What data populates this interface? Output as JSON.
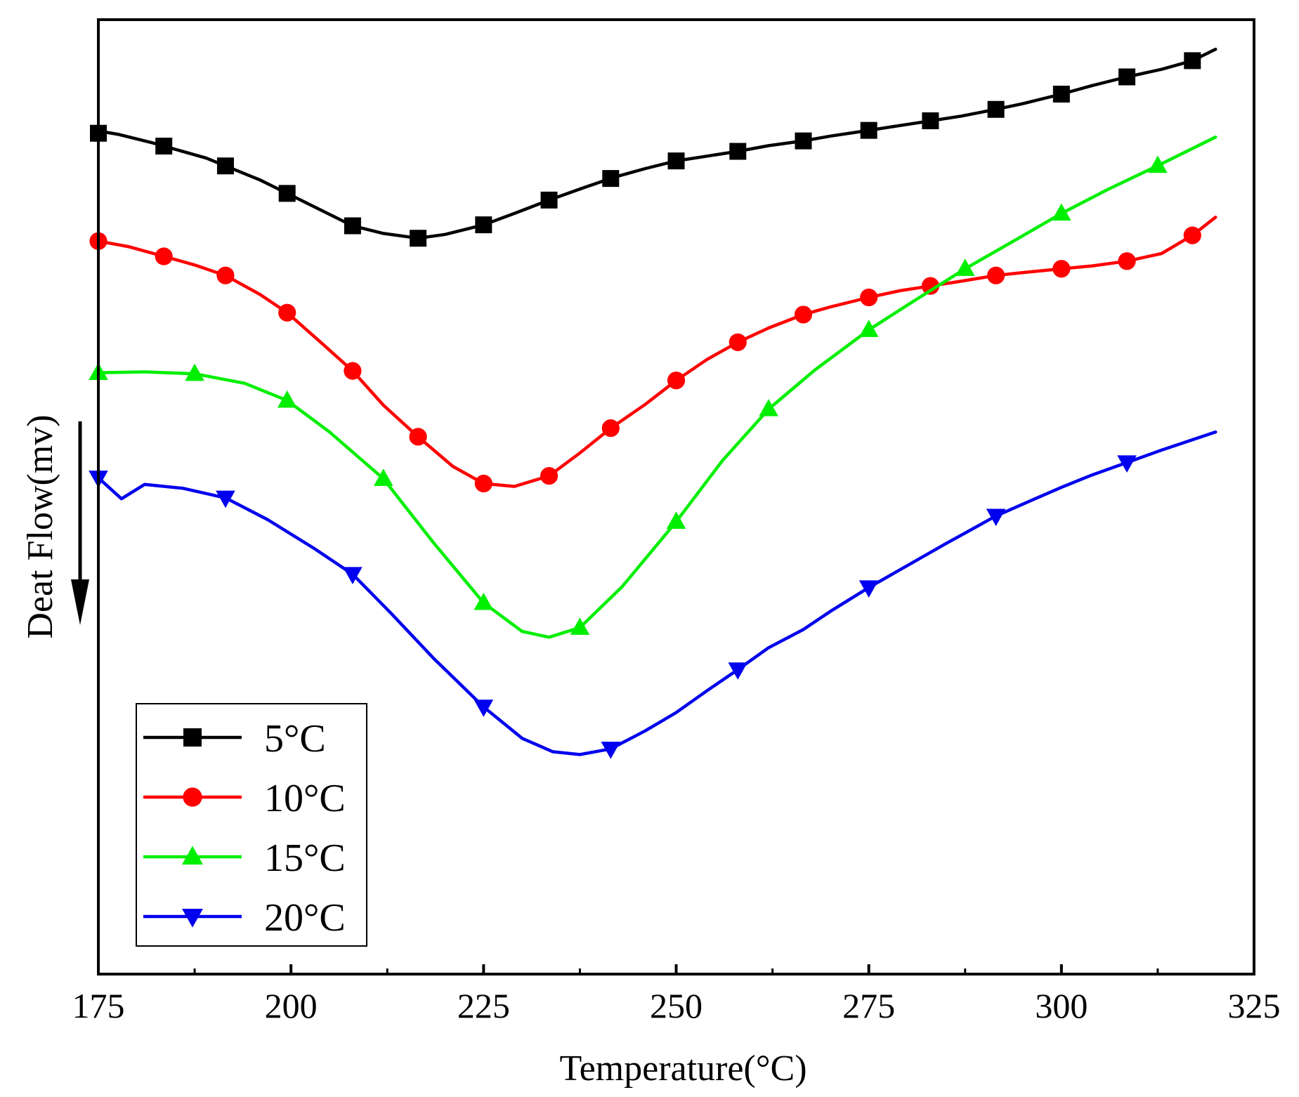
{
  "chart_data": {
    "type": "line",
    "title": "",
    "xlabel": "Temperature(°C)",
    "ylabel": "Deat Flow(mv)",
    "xlim": [
      175,
      325
    ],
    "ylim": [
      0,
      100
    ],
    "xticks": [
      "175",
      "200",
      "225",
      "250",
      "275",
      "300",
      "325"
    ],
    "xtick_values": [
      175,
      200,
      225,
      250,
      275,
      300,
      325
    ],
    "grid": false,
    "legend_position": "bottom-left",
    "ylabel_arrow": "down",
    "series": [
      {
        "name": "5°C",
        "color": "#000000",
        "marker": "square",
        "x": [
          175,
          176,
          177.5,
          182,
          189,
          196,
          202,
          208,
          212,
          216.5,
          220,
          225,
          229,
          233.5,
          238,
          242,
          246,
          250,
          254,
          258,
          262,
          266.5,
          270,
          275,
          279,
          283,
          287,
          291.5,
          295,
          300,
          304,
          308.5,
          313,
          317,
          320
        ],
        "y": [
          88.1,
          88.2,
          88.0,
          87.1,
          85.5,
          83.2,
          80.8,
          78.4,
          77.6,
          77.1,
          77.5,
          78.5,
          79.7,
          81.1,
          82.4,
          83.5,
          84.4,
          85.2,
          85.7,
          86.2,
          86.8,
          87.3,
          87.8,
          88.4,
          88.9,
          89.4,
          89.9,
          90.6,
          91.2,
          92.2,
          93.1,
          94.0,
          94.8,
          95.7,
          96.9
        ],
        "marker_x": [
          175,
          183.5,
          191.5,
          199.5,
          208,
          216.5,
          225,
          233.5,
          241.5,
          250,
          258,
          266.5,
          275,
          283,
          291.5,
          300,
          308.5,
          317
        ]
      },
      {
        "name": "10°C",
        "color": "#ff0000",
        "marker": "circle",
        "x": [
          175,
          179,
          183.5,
          187.5,
          191.5,
          196,
          199.5,
          204,
          208,
          212,
          216.5,
          221,
          225,
          229,
          233.5,
          237.5,
          241.5,
          246,
          250,
          254,
          258,
          262,
          266.5,
          270,
          275,
          279,
          283,
          287,
          291.5,
          295,
          300,
          304,
          308.5,
          313,
          317,
          320
        ],
        "y": [
          76.8,
          76.2,
          75.2,
          74.3,
          73.2,
          71.2,
          69.3,
          66.1,
          63.2,
          59.6,
          56.3,
          53.2,
          51.4,
          51.1,
          52.2,
          54.6,
          57.2,
          59.7,
          62.2,
          64.4,
          66.2,
          67.7,
          69.1,
          69.9,
          70.9,
          71.6,
          72.1,
          72.6,
          73.2,
          73.5,
          73.9,
          74.2,
          74.7,
          75.5,
          77.4,
          79.3
        ],
        "marker_x": [
          175,
          183.5,
          191.5,
          199.5,
          208,
          216.5,
          225,
          233.5,
          241.5,
          250,
          258,
          266.5,
          275,
          283,
          291.5,
          300,
          308.5,
          317
        ]
      },
      {
        "name": "15°C",
        "color": "#00ee00",
        "marker": "triangle-up",
        "x": [
          175,
          181,
          187.5,
          194,
          199.5,
          205,
          212,
          218.5,
          225,
          230,
          233.5,
          237.5,
          243,
          250,
          256,
          262,
          268,
          275,
          281,
          287.5,
          294,
          300,
          306,
          312.5,
          320
        ],
        "y": [
          63.0,
          63.1,
          62.9,
          61.9,
          60.1,
          56.8,
          51.9,
          45.2,
          38.9,
          35.9,
          35.3,
          36.3,
          40.6,
          47.4,
          53.8,
          59.2,
          63.3,
          67.5,
          70.6,
          73.9,
          76.9,
          79.7,
          82.2,
          84.7,
          87.7
        ],
        "marker_x": [
          175,
          187.5,
          199.5,
          212,
          225,
          237.5,
          250,
          262,
          275,
          287.5,
          300,
          312.5
        ]
      },
      {
        "name": "20°C",
        "color": "#0000ee",
        "marker": "triangle-down",
        "x": [
          175,
          178,
          181,
          186,
          191.5,
          197,
          203,
          208,
          213,
          218.5,
          225,
          230,
          234,
          237.5,
          241.5,
          246,
          250,
          254,
          258,
          262,
          266.5,
          270,
          275,
          280,
          285,
          291.5,
          296,
          300,
          304,
          308.5,
          313,
          320
        ],
        "y": [
          52.0,
          49.8,
          51.3,
          50.9,
          49.9,
          47.6,
          44.6,
          41.9,
          37.8,
          33.1,
          28.0,
          24.7,
          23.3,
          23.0,
          23.6,
          25.5,
          27.4,
          29.7,
          31.9,
          34.2,
          36.1,
          38.0,
          40.5,
          42.8,
          45.1,
          48.0,
          49.6,
          51.0,
          52.3,
          53.6,
          54.9,
          56.8
        ],
        "marker_x": [
          175,
          191.5,
          208,
          225,
          241.5,
          258,
          275,
          291.5,
          308.5
        ]
      }
    ]
  }
}
